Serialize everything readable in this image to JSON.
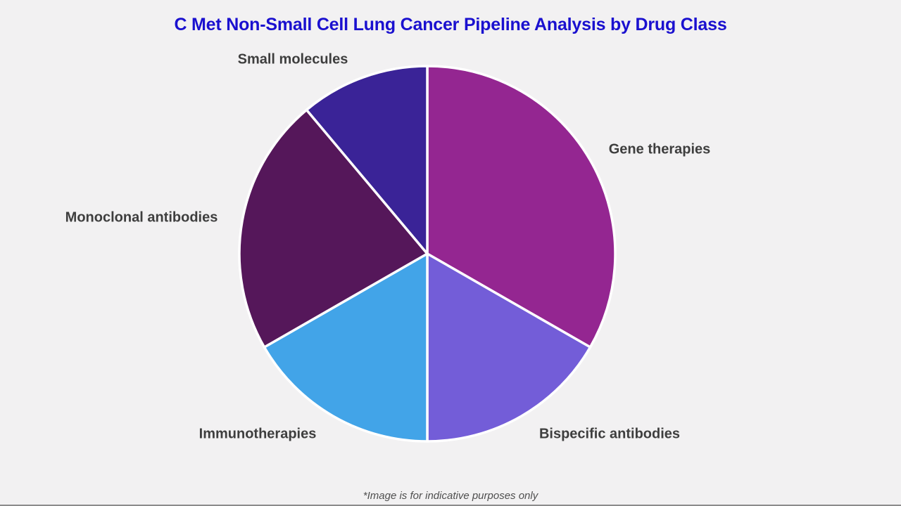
{
  "page": {
    "background_color": "#F2F1F2",
    "title": "C Met Non-Small Cell Lung Cancer Pipeline Analysis by Drug Class",
    "title_color": "#1A10CF",
    "footnote": "*Image is for indicative purposes only"
  },
  "chart_data": {
    "type": "pie",
    "title": "C Met Non-Small Cell Lung Cancer Pipeline Analysis by Drug Class",
    "start_angle_deg": 0,
    "direction": "clockwise",
    "slice_gap_color": "#FFFFFF",
    "legend_position": "labels-outside",
    "slices": [
      {
        "label": "Gene therapies",
        "value_percent": 33.3,
        "color": "#942691"
      },
      {
        "label": "Bispecific antibodies",
        "value_percent": 16.7,
        "color": "#735DD8"
      },
      {
        "label": "Immunotherapies",
        "value_percent": 16.7,
        "color": "#42A4E8"
      },
      {
        "label": "Monoclonal antibodies",
        "value_percent": 22.2,
        "color": "#55175A"
      },
      {
        "label": "Small molecules",
        "value_percent": 11.1,
        "color": "#3A2397"
      }
    ],
    "annotations": [
      "*Image is for indicative purposes only"
    ]
  }
}
